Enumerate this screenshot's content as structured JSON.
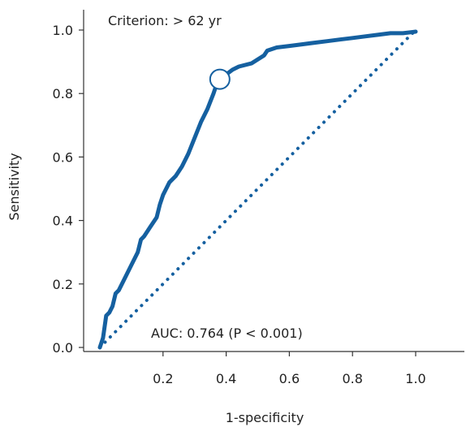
{
  "colors": {
    "roc_curve": "#1560a0",
    "reference_line": "#1560a0",
    "axes": "#333333",
    "text": "#222222"
  },
  "chart_data": {
    "type": "line",
    "xlabel": "1-specificity",
    "ylabel": "Sensitivity",
    "xlim": [
      0,
      1.0
    ],
    "ylim": [
      0,
      1.0
    ],
    "x_ticks": [
      0.2,
      0.4,
      0.6,
      0.8,
      1.0
    ],
    "x_tick_labels": [
      "0.2",
      "0.4",
      "0.6",
      "0.8",
      "1.0"
    ],
    "y_ticks": [
      0.0,
      0.2,
      0.4,
      0.6,
      0.8,
      1.0
    ],
    "y_tick_labels": [
      "0.0",
      "0.2",
      "0.4",
      "0.6",
      "0.8",
      "1.0"
    ],
    "grid": false,
    "legend": "none",
    "annotations": {
      "criterion": "Criterion: > 62 yr",
      "auc": "AUC: 0.764 (P < 0.001)"
    },
    "series": [
      {
        "style": "solid",
        "x": [
          0.0,
          0.01,
          0.02,
          0.03,
          0.04,
          0.05,
          0.06,
          0.08,
          0.1,
          0.12,
          0.13,
          0.14,
          0.16,
          0.18,
          0.19,
          0.2,
          0.22,
          0.24,
          0.26,
          0.28,
          0.3,
          0.32,
          0.34,
          0.36,
          0.37,
          0.38,
          0.4,
          0.42,
          0.44,
          0.48,
          0.52,
          0.53,
          0.56,
          0.6,
          0.64,
          0.68,
          0.72,
          0.76,
          0.8,
          0.84,
          0.88,
          0.92,
          0.96,
          1.0
        ],
        "y": [
          0.0,
          0.03,
          0.1,
          0.11,
          0.13,
          0.17,
          0.18,
          0.22,
          0.26,
          0.3,
          0.34,
          0.35,
          0.38,
          0.41,
          0.45,
          0.48,
          0.52,
          0.54,
          0.57,
          0.61,
          0.66,
          0.71,
          0.75,
          0.8,
          0.83,
          0.845,
          0.86,
          0.875,
          0.885,
          0.895,
          0.92,
          0.935,
          0.945,
          0.95,
          0.955,
          0.96,
          0.965,
          0.97,
          0.975,
          0.98,
          0.985,
          0.99,
          0.99,
          0.995
        ]
      },
      {
        "style": "dotted",
        "x": [
          0.0,
          1.0
        ],
        "y": [
          0.0,
          1.0
        ]
      }
    ],
    "highlight_point": {
      "x": 0.38,
      "y": 0.845
    }
  }
}
